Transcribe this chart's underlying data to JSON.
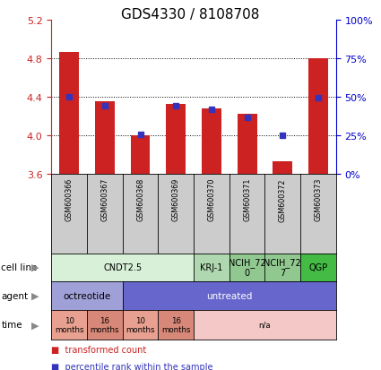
{
  "title": "GDS4330 / 8108708",
  "samples": [
    "GSM600366",
    "GSM600367",
    "GSM600368",
    "GSM600369",
    "GSM600370",
    "GSM600371",
    "GSM600372",
    "GSM600373"
  ],
  "bar_values": [
    4.86,
    4.35,
    4.0,
    4.32,
    4.28,
    4.22,
    3.73,
    4.8
  ],
  "bar_base": 3.6,
  "percentile_values": [
    4.4,
    4.3,
    4.01,
    4.3,
    4.265,
    4.185,
    4.0,
    4.385
  ],
  "ylim": [
    3.6,
    5.2
  ],
  "yticks_left": [
    3.6,
    4.0,
    4.4,
    4.8,
    5.2
  ],
  "yticks_right": [
    0,
    25,
    50,
    75,
    100
  ],
  "bar_color": "#cc2222",
  "percentile_color": "#3333bb",
  "cell_line_groups": [
    {
      "label": "CNDT2.5",
      "span": [
        0,
        4
      ],
      "color": "#d8f0d8"
    },
    {
      "label": "KRJ-1",
      "span": [
        4,
        5
      ],
      "color": "#b0d8b0"
    },
    {
      "label": "NCIH_72\n0",
      "span": [
        5,
        6
      ],
      "color": "#90c890"
    },
    {
      "label": "NCIH_72\n7",
      "span": [
        6,
        7
      ],
      "color": "#90c890"
    },
    {
      "label": "QGP",
      "span": [
        7,
        8
      ],
      "color": "#44bb44"
    }
  ],
  "agent_groups": [
    {
      "label": "octreotide",
      "span": [
        0,
        2
      ],
      "color": "#a0a0d8"
    },
    {
      "label": "untreated",
      "span": [
        2,
        8
      ],
      "color": "#6666cc"
    }
  ],
  "time_groups": [
    {
      "label": "10\nmonths",
      "span": [
        0,
        1
      ],
      "color": "#e8a090"
    },
    {
      "label": "16\nmonths",
      "span": [
        1,
        2
      ],
      "color": "#d88878"
    },
    {
      "label": "10\nmonths",
      "span": [
        2,
        3
      ],
      "color": "#e8a090"
    },
    {
      "label": "16\nmonths",
      "span": [
        3,
        4
      ],
      "color": "#d88878"
    },
    {
      "label": "n/a",
      "span": [
        4,
        8
      ],
      "color": "#f5c8c8"
    }
  ],
  "legend_items": [
    {
      "label": "transformed count",
      "color": "#cc2222"
    },
    {
      "label": "percentile rank within the sample",
      "color": "#3333bb"
    }
  ],
  "row_labels": [
    "cell line",
    "agent",
    "time"
  ],
  "axis_color_left": "#cc2222",
  "axis_color_right": "#0000cc"
}
